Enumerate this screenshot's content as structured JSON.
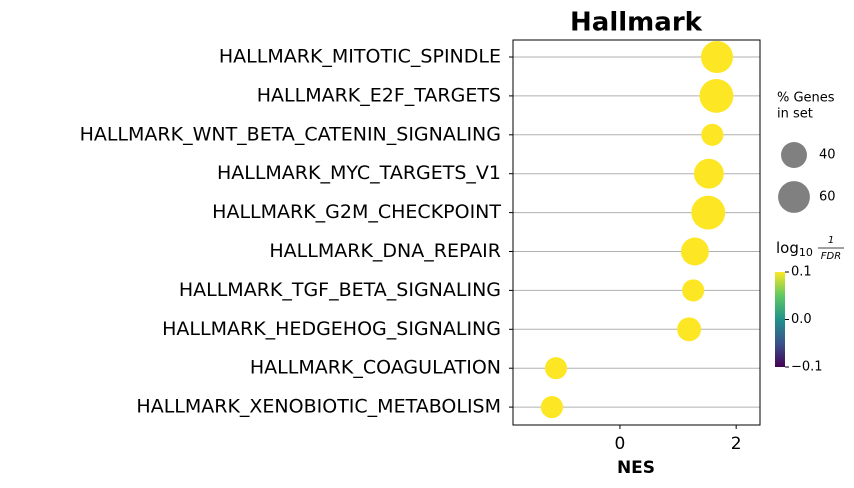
{
  "chart_data": {
    "type": "dot",
    "title": "Hallmark",
    "xlabel": "NES",
    "categories": [
      "HALLMARK_MITOTIC_SPINDLE",
      "HALLMARK_E2F_TARGETS",
      "HALLMARK_WNT_BETA_CATENIN_SIGNALING",
      "HALLMARK_MYC_TARGETS_V1",
      "HALLMARK_G2M_CHECKPOINT",
      "HALLMARK_DNA_REPAIR",
      "HALLMARK_TGF_BETA_SIGNALING",
      "HALLMARK_HEDGEHOG_SIGNALING",
      "HALLMARK_COAGULATION",
      "HALLMARK_XENOBIOTIC_METABOLISM"
    ],
    "values": [
      1.67,
      1.66,
      1.59,
      1.53,
      1.52,
      1.29,
      1.26,
      1.19,
      -1.1,
      -1.17
    ],
    "sizes": [
      61,
      68,
      29,
      53,
      68,
      46,
      29,
      34,
      29,
      29
    ],
    "color": "#fde725",
    "xlim": [
      -1.84,
      2.41
    ],
    "xticks": [
      0,
      2
    ],
    "grid": true,
    "size_legend": {
      "title": [
        "% Genes",
        "in set"
      ],
      "values": [
        40,
        60
      ],
      "color": "#808080"
    },
    "colorbar": {
      "label": {
        "base": "log",
        "subscript": "10",
        "numerator": "1",
        "denominator": "FDR"
      },
      "clim": [
        -0.1,
        0.1
      ],
      "ticks": [
        {
          "value": 0.1,
          "label": "0.1"
        },
        {
          "value": 0.0,
          "label": "0.0"
        },
        {
          "value": -0.1,
          "label": "−0.1"
        }
      ]
    }
  }
}
